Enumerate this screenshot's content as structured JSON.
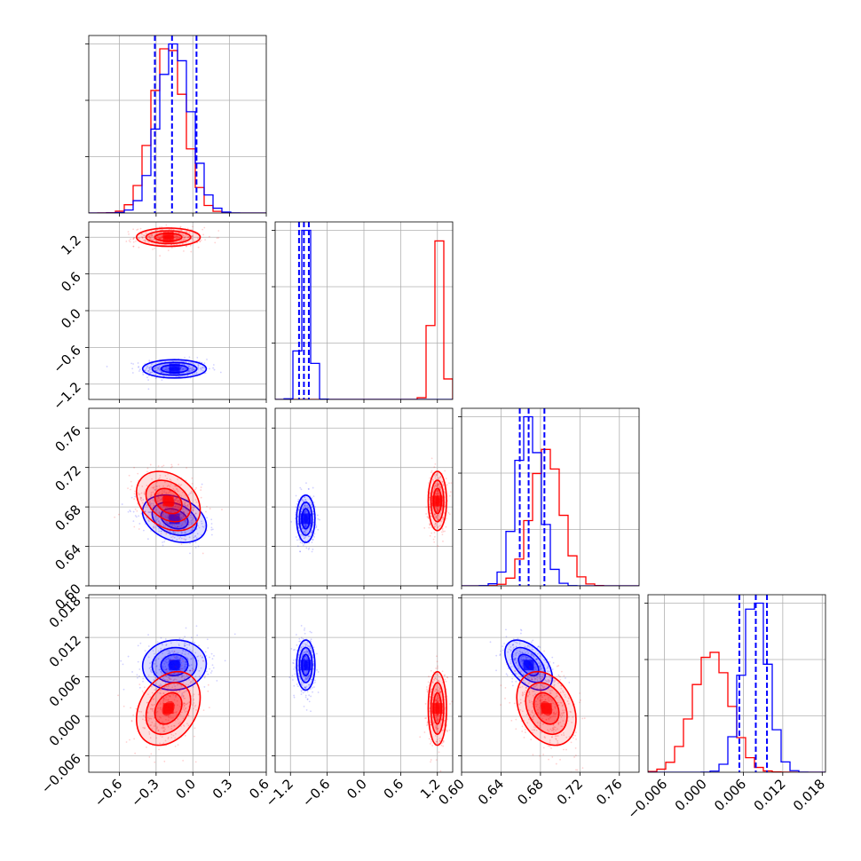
{
  "chart_data": {
    "type": "corner",
    "title": "",
    "grid": true,
    "series": [
      {
        "color": "#0000ff",
        "means": [
          -0.15,
          -0.95,
          0.668,
          0.0078
        ],
        "sds": [
          0.13,
          0.075,
          0.012,
          0.0019
        ],
        "correlations": [
          [
            0,
            1,
            0.0
          ],
          [
            0,
            2,
            -0.3
          ],
          [
            0,
            3,
            0.05
          ],
          [
            1,
            2,
            0.0
          ],
          [
            1,
            3,
            0.0
          ],
          [
            2,
            3,
            -0.5
          ]
        ],
        "quantile_lines": [
          [
            -0.31,
            -0.17,
            0.03
          ],
          [
            -1.06,
            -0.98,
            -0.9
          ],
          [
            0.659,
            0.668,
            0.684
          ],
          [
            0.0054,
            0.0079,
            0.0096
          ]
        ]
      },
      {
        "color": "#ff0000",
        "means": [
          -0.2,
          1.2,
          0.686,
          0.0012
        ],
        "sds": [
          0.13,
          0.075,
          0.015,
          0.0028
        ],
        "correlations": [
          [
            0,
            1,
            0.0
          ],
          [
            0,
            2,
            -0.3
          ],
          [
            0,
            3,
            0.3
          ],
          [
            1,
            2,
            0.0
          ],
          [
            1,
            3,
            0.0
          ],
          [
            2,
            3,
            -0.3
          ]
        ],
        "quantile_lines": null
      }
    ],
    "parameters": [
      {
        "range": [
          -0.85,
          0.6
        ],
        "ticks": [
          "−0.6",
          "−0.3",
          "0.0",
          "0.3",
          "0.6"
        ],
        "tick_values": [
          -0.6,
          -0.3,
          0.0,
          0.3,
          0.6
        ]
      },
      {
        "range": [
          -1.45,
          1.45
        ],
        "ticks": [
          "−1.2",
          "−0.6",
          "0.0",
          "0.6",
          "1.2"
        ],
        "tick_values": [
          -1.2,
          -0.6,
          0.0,
          0.6,
          1.2
        ]
      },
      {
        "range": [
          0.6,
          0.78
        ],
        "ticks": [
          "0.60",
          "0.64",
          "0.68",
          "0.72",
          "0.76"
        ],
        "tick_values": [
          0.6,
          0.64,
          0.68,
          0.72,
          0.76
        ]
      },
      {
        "range": [
          -0.0085,
          0.0185
        ],
        "ticks": [
          "−0.006",
          "0.000",
          "0.006",
          "0.012",
          "0.018"
        ],
        "tick_values": [
          -0.006,
          0.0,
          0.006,
          0.012,
          0.018
        ]
      }
    ],
    "diagonal_ylabel_ticks": 3
  }
}
